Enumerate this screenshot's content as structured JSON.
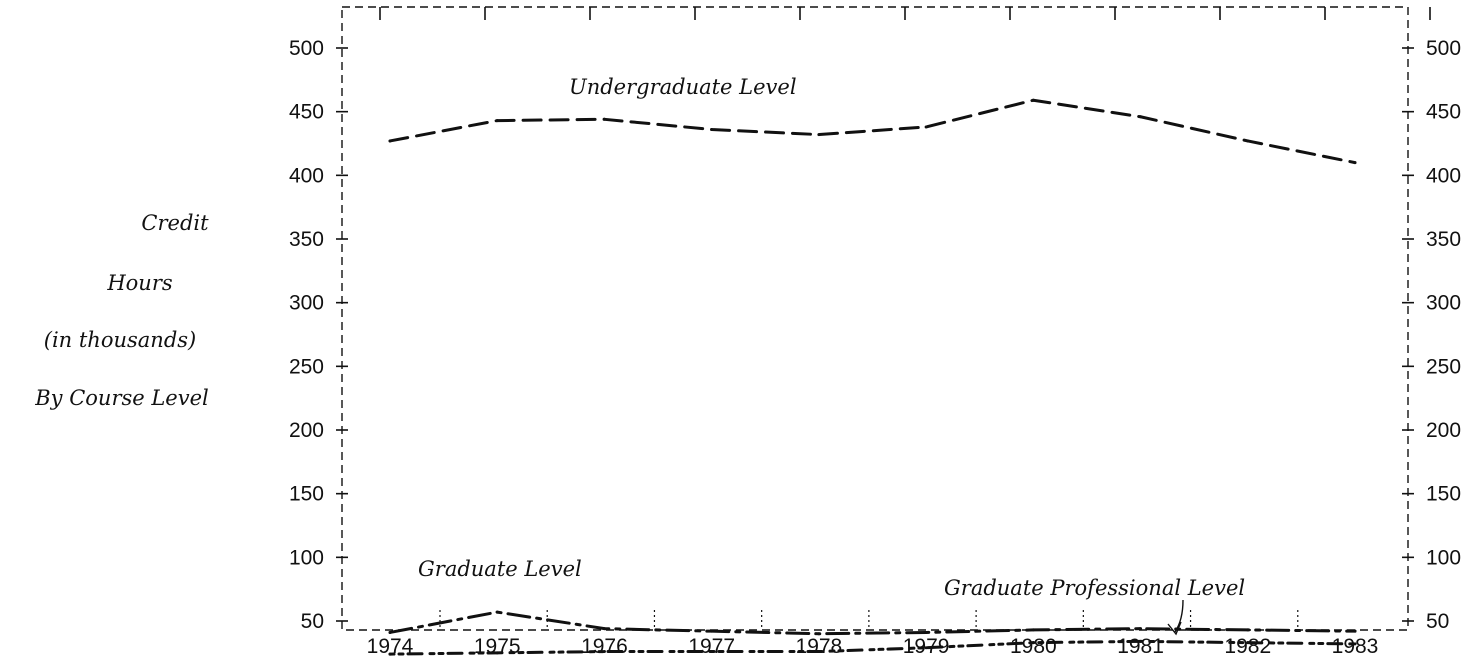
{
  "chart_data": {
    "type": "line",
    "ylabel_lines": [
      "Credit",
      "Hours",
      "(in thousands)",
      "By Course Level"
    ],
    "categories": [
      "1974",
      "1975",
      "1976",
      "1977",
      "1978",
      "1979",
      "1980",
      "1981",
      "1982",
      "1983"
    ],
    "yticks": [
      "500",
      "450",
      "400",
      "350",
      "300",
      "250",
      "200",
      "150",
      "100",
      "50"
    ],
    "yticks_right": [
      "500",
      "450",
      "400",
      "350",
      "300",
      "250",
      "200",
      "150",
      "100",
      "50"
    ],
    "ylim": [
      25,
      525
    ],
    "series": [
      {
        "name": "Undergraduate Level",
        "style": "dashed",
        "values": [
          427,
          443,
          444,
          436,
          432,
          438,
          459,
          446,
          427,
          410
        ]
      },
      {
        "name": "Graduate Level",
        "style": "dash-dot",
        "values": [
          41,
          57,
          44,
          42,
          40,
          41,
          43,
          44,
          43,
          42
        ]
      },
      {
        "name": "Graduate Professional Level",
        "style": "dotted",
        "values": [
          24,
          25,
          26,
          26,
          26,
          29,
          33,
          34,
          33,
          32
        ]
      }
    ],
    "annotations": {
      "undergrad": "Undergraduate Level",
      "grad": "Graduate Level",
      "gradprof": "Graduate Professional Level"
    }
  }
}
